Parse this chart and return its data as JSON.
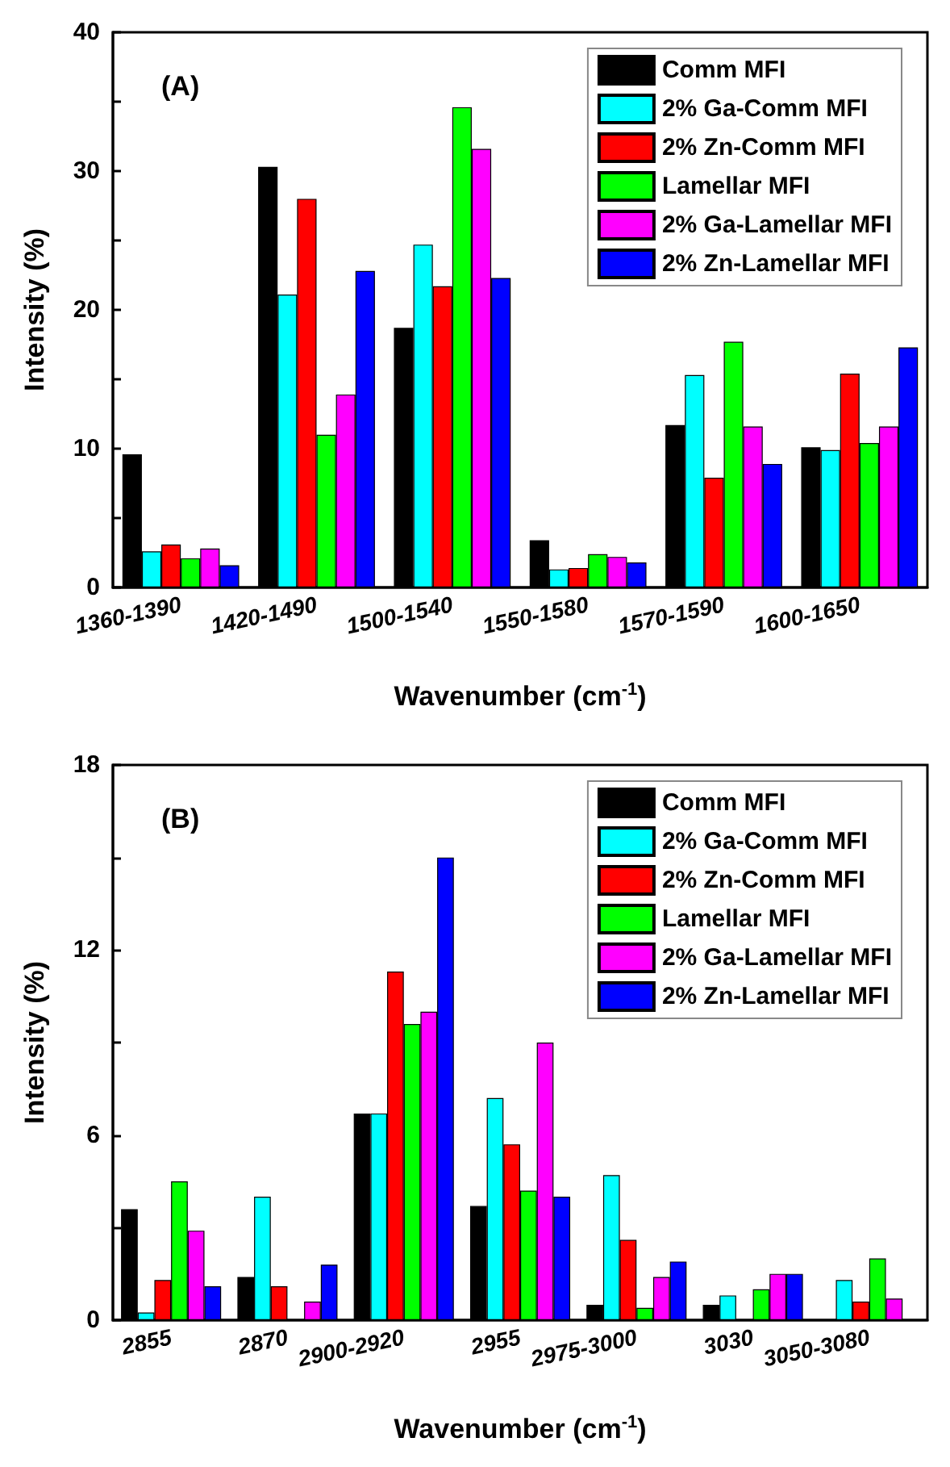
{
  "chart_data": [
    {
      "type": "bar",
      "title": "(A)",
      "xlabel": "Wavenumber (cm$^{-1}$)",
      "ylabel": "Intensity (%)",
      "categories": [
        "1360-1390",
        "1420-1490",
        "1500-1540",
        "1550-1580",
        "1570-1590",
        "1600-1650"
      ],
      "ylim": [
        0,
        40
      ],
      "yticks": [
        0,
        10,
        20,
        30,
        40
      ],
      "grid": false,
      "legend": "top right",
      "series": [
        {
          "name": "Comm MFI",
          "color": "#000000",
          "values": [
            9.6,
            30.3,
            18.7,
            3.4,
            11.7,
            10.1
          ]
        },
        {
          "name": "2% Ga-Comm MFI",
          "color": "#00ffff",
          "values": [
            2.6,
            21.1,
            24.7,
            1.3,
            15.3,
            9.9
          ]
        },
        {
          "name": "2% Zn-Comm MFI",
          "color": "#ff0000",
          "values": [
            3.1,
            28.0,
            21.7,
            1.4,
            7.9,
            15.4
          ]
        },
        {
          "name": "Lamellar MFI",
          "color": "#00ff00",
          "values": [
            2.1,
            11.0,
            34.6,
            2.4,
            17.7,
            10.4
          ]
        },
        {
          "name": "2% Ga-Lamellar MFI",
          "color": "#ff00ff",
          "values": [
            2.8,
            13.9,
            31.6,
            2.2,
            11.6,
            11.6
          ]
        },
        {
          "name": "2% Zn-Lamellar MFI",
          "color": "#0000ff",
          "values": [
            1.6,
            22.8,
            22.3,
            1.8,
            8.9,
            17.3
          ]
        }
      ]
    },
    {
      "type": "bar",
      "title": "(B)",
      "xlabel": "Wavenumber (cm$^{-1}$)",
      "ylabel": "Intensity (%)",
      "categories": [
        "2855",
        "2870",
        "2900-2920",
        "2955",
        "2975-3000",
        "3030",
        "3050-3080"
      ],
      "ylim": [
        0,
        18
      ],
      "yticks": [
        0,
        6,
        12,
        18
      ],
      "grid": false,
      "legend": "top right",
      "series": [
        {
          "name": "Comm MFI",
          "color": "#000000",
          "values": [
            3.6,
            1.4,
            6.7,
            3.7,
            0.5,
            0.5,
            null
          ]
        },
        {
          "name": "2% Ga-Comm MFI",
          "color": "#00ffff",
          "values": [
            0.25,
            4.0,
            6.7,
            7.2,
            4.7,
            0.8,
            1.3
          ]
        },
        {
          "name": "2% Zn-Comm MFI",
          "color": "#ff0000",
          "values": [
            1.3,
            1.1,
            11.3,
            5.7,
            2.6,
            null,
            0.6
          ]
        },
        {
          "name": "Lamellar MFI",
          "color": "#00ff00",
          "values": [
            4.5,
            null,
            9.6,
            4.2,
            0.4,
            1.0,
            2.0
          ]
        },
        {
          "name": "2% Ga-Lamellar MFI",
          "color": "#ff00ff",
          "values": [
            2.9,
            0.6,
            10.0,
            9.0,
            1.4,
            1.5,
            0.7
          ]
        },
        {
          "name": "2% Zn-Lamellar MFI",
          "color": "#0000ff",
          "values": [
            1.1,
            1.8,
            15.0,
            4.0,
            1.9,
            1.5,
            null
          ]
        }
      ]
    }
  ]
}
